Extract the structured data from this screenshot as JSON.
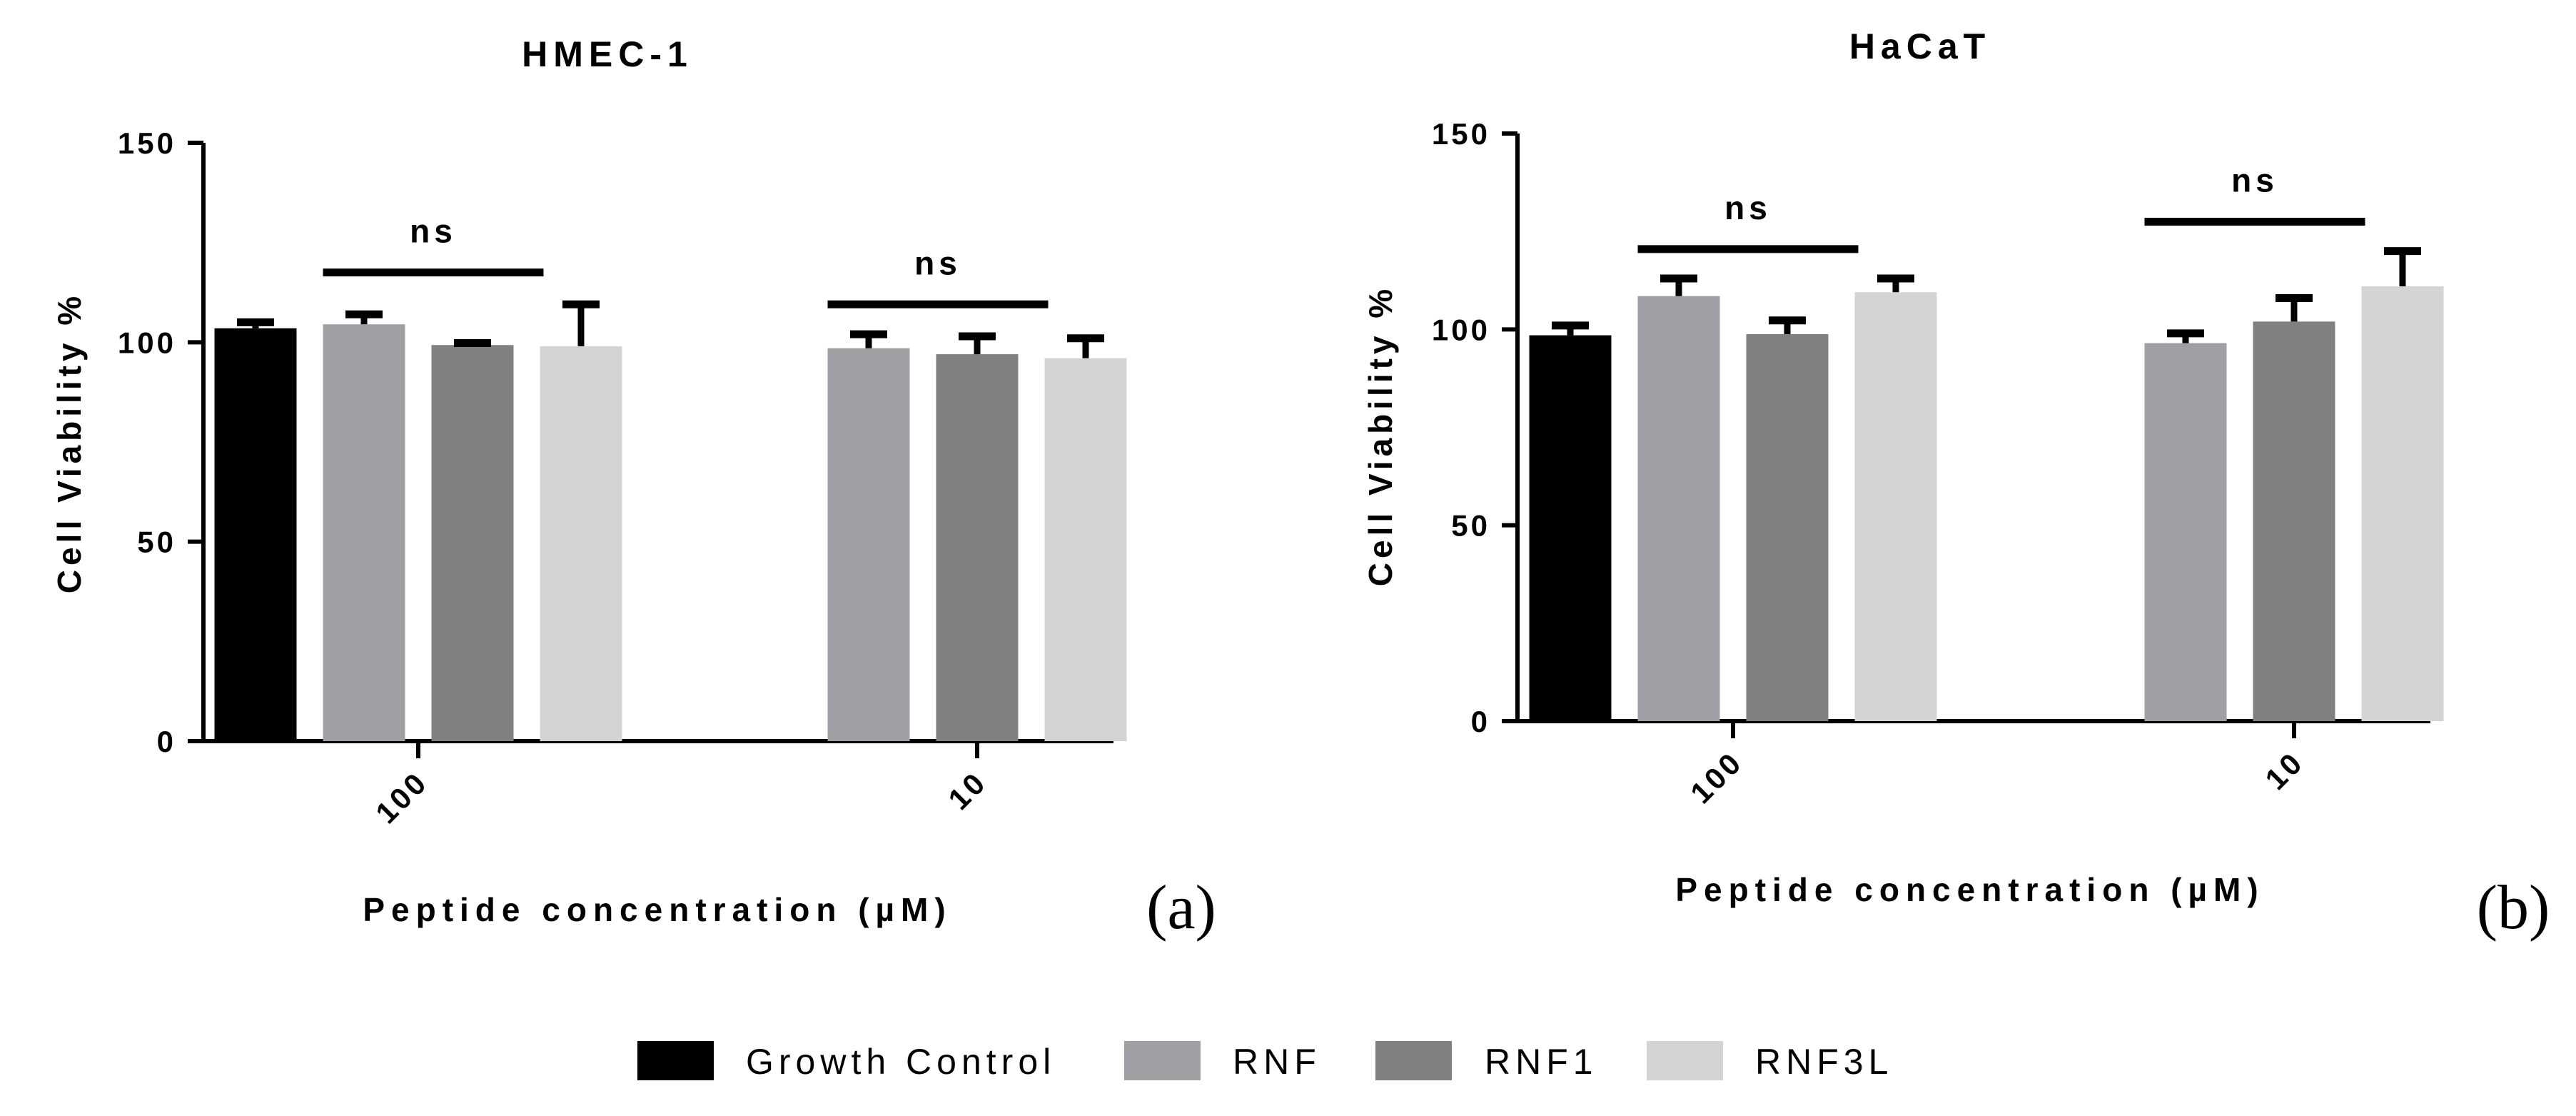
{
  "colors": {
    "Growth Control": "#000000",
    "RNF": "#a0a0a4",
    "RNF1": "#808080",
    "RNF3L": "#d4d4d4",
    "axis": "#000000",
    "background": "#ffffff"
  },
  "legend": {
    "items": [
      "Growth Control",
      "RNF",
      "RNF1",
      "RNF3L"
    ],
    "placement": "bottom-center"
  },
  "chart_data": [
    {
      "type": "bar",
      "panel_label": "(a)",
      "title": "HMEC-1",
      "xlabel": "Peptide concentration (µM)",
      "ylabel": "Cell Viability %",
      "ylim": [
        0,
        150
      ],
      "yticks": [
        0,
        50,
        100,
        150
      ],
      "grid": false,
      "categories": [
        "100",
        "10"
      ],
      "series": [
        {
          "name": "Growth Control",
          "values": [
            103.5,
            null
          ],
          "errors": [
            1.5,
            null
          ]
        },
        {
          "name": "RNF",
          "values": [
            104.5,
            98.5
          ],
          "errors": [
            2.5,
            3.5
          ]
        },
        {
          "name": "RNF1",
          "values": [
            99.3,
            97.0
          ],
          "errors": [
            0.5,
            4.5
          ]
        },
        {
          "name": "RNF3L",
          "values": [
            99.0,
            96.0
          ],
          "errors": [
            10.5,
            5.0
          ]
        }
      ],
      "annotations": [
        {
          "text": "ns",
          "category": "100",
          "from_series": "RNF",
          "to_series": "RNF3L",
          "y": 117.5
        },
        {
          "text": "ns",
          "category": "10",
          "from_series": "RNF",
          "to_series": "RNF3L",
          "y": 109.5
        }
      ]
    },
    {
      "type": "bar",
      "panel_label": "(b)",
      "title": "HaCaT",
      "xlabel": "Peptide concentration (µM)",
      "ylabel": "Cell Viability %",
      "ylim": [
        0,
        150
      ],
      "yticks": [
        0,
        50,
        100,
        150
      ],
      "grid": false,
      "categories": [
        "100",
        "10"
      ],
      "series": [
        {
          "name": "Growth Control",
          "values": [
            98.5,
            null
          ],
          "errors": [
            2.5,
            null
          ]
        },
        {
          "name": "RNF",
          "values": [
            108.5,
            96.5
          ],
          "errors": [
            4.5,
            2.5
          ]
        },
        {
          "name": "RNF1",
          "values": [
            98.8,
            102.0
          ],
          "errors": [
            3.5,
            6.0
          ]
        },
        {
          "name": "RNF3L",
          "values": [
            109.5,
            111.0
          ],
          "errors": [
            3.5,
            9.0
          ]
        }
      ],
      "annotations": [
        {
          "text": "ns",
          "category": "100",
          "from_series": "RNF",
          "to_series": "RNF3L",
          "y": 120.5
        },
        {
          "text": "ns",
          "category": "10",
          "from_series": "RNF",
          "to_series": "RNF3L",
          "y": 127.5
        }
      ]
    }
  ]
}
